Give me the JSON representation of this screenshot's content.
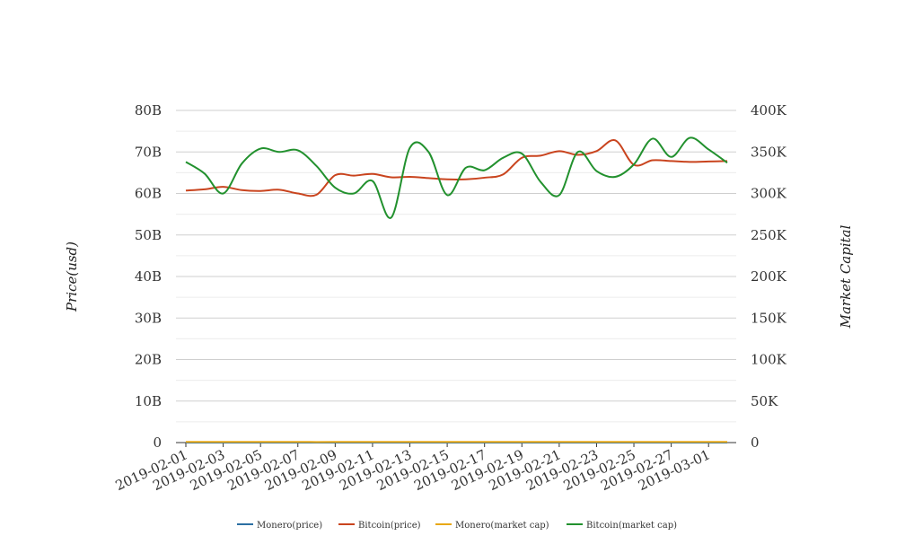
{
  "chart_data": {
    "type": "line",
    "title": "",
    "y_left_label": "Price(usd)",
    "y_right_label": "Market Capital",
    "y_left_ticks": [
      "0",
      "10B",
      "20B",
      "30B",
      "40B",
      "50B",
      "60B",
      "70B",
      "80B"
    ],
    "y_right_ticks": [
      "0",
      "50K",
      "100K",
      "150K",
      "200K",
      "250K",
      "300K",
      "350K",
      "400K"
    ],
    "y_left_range": [
      0,
      80000000000
    ],
    "y_right_range": [
      0,
      400000
    ],
    "x_tick_labels": [
      "2019-02-01",
      "2019-02-03",
      "2019-02-05",
      "2019-02-07",
      "2019-02-09",
      "2019-02-11",
      "2019-02-13",
      "2019-02-15",
      "2019-02-17",
      "2019-02-19",
      "2019-02-21",
      "2019-02-23",
      "2019-02-25",
      "2019-02-27",
      "2019-03-01"
    ],
    "x": [
      "2019-02-01",
      "2019-02-02",
      "2019-02-03",
      "2019-02-04",
      "2019-02-05",
      "2019-02-06",
      "2019-02-07",
      "2019-02-08",
      "2019-02-09",
      "2019-02-10",
      "2019-02-11",
      "2019-02-12",
      "2019-02-13",
      "2019-02-14",
      "2019-02-15",
      "2019-02-16",
      "2019-02-17",
      "2019-02-18",
      "2019-02-19",
      "2019-02-20",
      "2019-02-21",
      "2019-02-22",
      "2019-02-23",
      "2019-02-24",
      "2019-02-25",
      "2019-02-26",
      "2019-02-27",
      "2019-02-28",
      "2019-03-01",
      "2019-03-02"
    ],
    "grid": true,
    "legend_position": "bottom",
    "series": [
      {
        "name": "Monero(price)",
        "axis": "left",
        "color": "#2c6fa3",
        "values": [
          45,
          45,
          46,
          46,
          46,
          46,
          45,
          44,
          44,
          46,
          46,
          47,
          47,
          47,
          47,
          46,
          47,
          47,
          49,
          50,
          50,
          49,
          49,
          50,
          51,
          51,
          50,
          50,
          50,
          50
        ]
      },
      {
        "name": "Bitcoin(price)",
        "axis": "left",
        "color": "#c9441e",
        "values": [
          60700000000,
          61000000000,
          61600000000,
          60800000000,
          60600000000,
          60900000000,
          60000000000,
          59700000000,
          64400000000,
          64300000000,
          64700000000,
          63900000000,
          64000000000,
          63700000000,
          63400000000,
          63400000000,
          63800000000,
          64600000000,
          68600000000,
          69100000000,
          70200000000,
          69300000000,
          70200000000,
          72800000000,
          66900000000,
          68000000000,
          67800000000,
          67600000000,
          67700000000,
          67800000000
        ]
      },
      {
        "name": "Monero(market cap)",
        "axis": "right",
        "color": "#e8a817",
        "values": [
          760,
          760,
          770,
          770,
          770,
          770,
          760,
          740,
          750,
          770,
          780,
          780,
          790,
          790,
          790,
          780,
          790,
          800,
          820,
          830,
          840,
          830,
          830,
          840,
          850,
          850,
          840,
          840,
          840,
          840
        ]
      },
      {
        "name": "Bitcoin(market cap)",
        "axis": "right",
        "color": "#22912e",
        "values": [
          338000,
          324000,
          300000,
          336000,
          354000,
          350000,
          352000,
          333000,
          307000,
          300000,
          315000,
          271000,
          355000,
          350000,
          298000,
          331000,
          328000,
          343000,
          348000,
          314000,
          298000,
          350000,
          327000,
          320000,
          335000,
          366000,
          344000,
          367000,
          353000,
          337000
        ]
      }
    ]
  }
}
